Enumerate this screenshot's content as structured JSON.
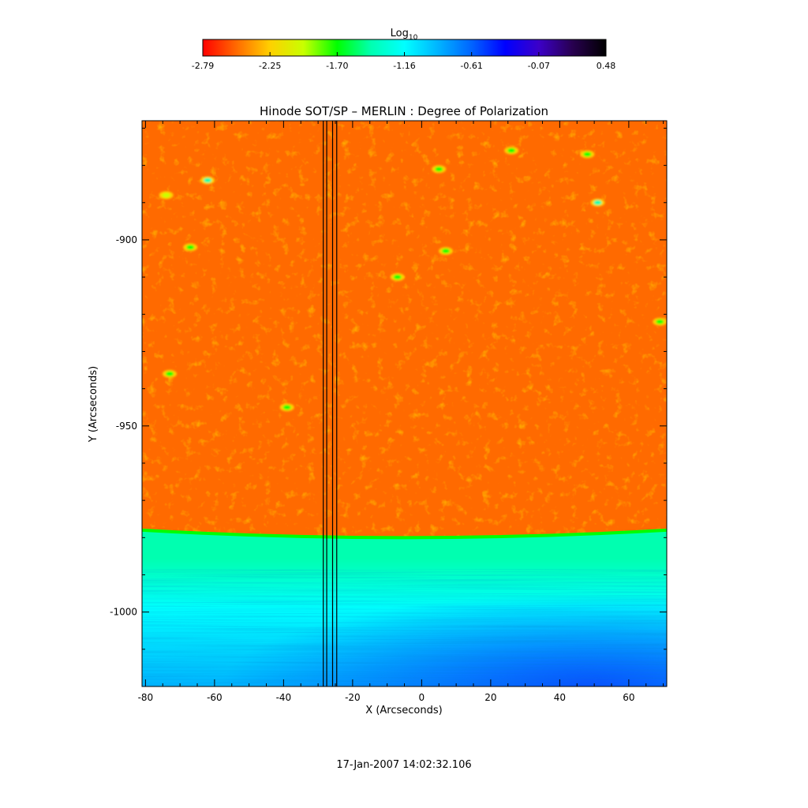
{
  "chart_data": {
    "type": "heatmap",
    "title": "Hinode SOT/SP – MERLIN : Degree of Polarization",
    "xlabel": "X (Arcseconds)",
    "ylabel": "Y (Arcseconds)",
    "xlim": [
      -81,
      71
    ],
    "ylim": [
      -1020,
      -868
    ],
    "x_ticks": [
      -80,
      -60,
      -40,
      -20,
      0,
      20,
      40,
      60
    ],
    "y_ticks": [
      -900,
      -950,
      -1000
    ],
    "timestamp": "17-Jan-2007 14:02:32.106",
    "colorbar": {
      "label_base": "Log",
      "label_sub": "10",
      "tick_labels": [
        "-2.79",
        "-2.25",
        "-1.70",
        "-1.16",
        "-0.61",
        "-0.07",
        "0.48"
      ],
      "range": [
        -2.79,
        0.48
      ],
      "colors": [
        "#ff0000",
        "#ff6a00",
        "#ffd000",
        "#c8ff00",
        "#00ff00",
        "#00ffb0",
        "#00ffff",
        "#00b4ff",
        "#0064ff",
        "#0000ff",
        "#3c00c8",
        "#280050",
        "#000000"
      ]
    },
    "limb_y": -980,
    "limb_y_edge": -978,
    "region_values": {
      "disk_log10": -2.6,
      "limb_log10": -1.7,
      "offlimb_top_log10": -1.35,
      "offlimb_bottom_log10": -0.85
    },
    "vertical_lines_x": [
      -28.5,
      -27.5,
      -25.8,
      -24.6
    ],
    "bright_features": [
      {
        "x": -62,
        "y": -884,
        "log10": -1.5
      },
      {
        "x": 5,
        "y": -881,
        "log10": -1.6
      },
      {
        "x": 51,
        "y": -890,
        "log10": -1.4
      },
      {
        "x": 26,
        "y": -876,
        "log10": -1.6
      },
      {
        "x": 48,
        "y": -877,
        "log10": -1.7
      },
      {
        "x": -67,
        "y": -902,
        "log10": -1.7
      },
      {
        "x": 7,
        "y": -903,
        "log10": -1.6
      },
      {
        "x": -7,
        "y": -910,
        "log10": -1.7
      },
      {
        "x": -39,
        "y": -945,
        "log10": -1.8
      },
      {
        "x": -73,
        "y": -936,
        "log10": -1.8
      },
      {
        "x": 69,
        "y": -922,
        "log10": -1.8
      },
      {
        "x": -74,
        "y": -888,
        "log10": -1.9
      }
    ]
  }
}
